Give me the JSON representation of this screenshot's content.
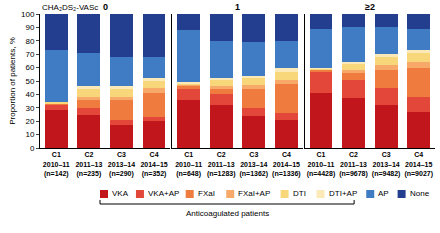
{
  "chart_data": {
    "type": "bar",
    "stacked": true,
    "title": "CHA₂DS₂-VASc",
    "y_label": "Proportion of patients, %",
    "ylim": [
      0,
      100
    ],
    "yticks": [
      0,
      10,
      20,
      30,
      40,
      50,
      60,
      70,
      80,
      90,
      100
    ],
    "legend": "bottom",
    "annotation": "Anticoagulated patients",
    "annotation_series": [
      "VKA",
      "VKA+AP",
      "FXaI",
      "FXaI+AP",
      "DTI",
      "DTI+AP"
    ],
    "series": [
      {
        "name": "VKA",
        "color": "#c0161c"
      },
      {
        "name": "VKA+AP",
        "color": "#e2473a"
      },
      {
        "name": "FXaI",
        "color": "#f07b3f"
      },
      {
        "name": "FXaI+AP",
        "color": "#f7a96a"
      },
      {
        "name": "DTI",
        "color": "#f7d77a"
      },
      {
        "name": "DTI+AP",
        "color": "#fbeab8"
      },
      {
        "name": "AP",
        "color": "#3f7cc4"
      },
      {
        "name": "None",
        "color": "#243e8f"
      }
    ],
    "panels": [
      {
        "title": "0",
        "categories": [
          "C1\n2010–11\n(n=142)",
          "C2\n2011–13\n(n=235)",
          "C3\n2013–14\n(n=290)",
          "C4\n2014–15\n(n=352)"
        ],
        "values": [
          [
            28,
            25,
            17,
            20
          ],
          [
            4,
            5,
            4,
            3
          ],
          [
            1,
            6,
            15,
            18
          ],
          [
            0,
            2,
            2,
            4
          ],
          [
            1,
            6,
            6,
            5
          ],
          [
            0,
            2,
            2,
            2
          ],
          [
            39,
            25,
            22,
            16
          ],
          [
            27,
            29,
            32,
            32
          ]
        ]
      },
      {
        "title": "1",
        "categories": [
          "C1\n2010–11\n(n=648)",
          "C2\n2011–13\n(n=1283)",
          "C3\n2013–14\n(n=1362)",
          "C4\n2014–15\n(n=1336)"
        ],
        "values": [
          [
            36,
            32,
            24,
            21
          ],
          [
            8,
            8,
            6,
            5
          ],
          [
            2,
            4,
            14,
            22
          ],
          [
            1,
            2,
            3,
            3
          ],
          [
            1,
            5,
            5,
            6
          ],
          [
            1,
            1,
            2,
            3
          ],
          [
            39,
            28,
            25,
            20
          ],
          [
            12,
            20,
            21,
            20
          ]
        ]
      },
      {
        "title": "≥2",
        "categories": [
          "C1\n2010–11\n(n=4428)",
          "C2\n2011–13\n(n=9678)",
          "C3\n2013–14\n(n=9482)",
          "C4\n2014–15\n(n=9027)"
        ],
        "values": [
          [
            41,
            37,
            32,
            27
          ],
          [
            16,
            14,
            13,
            11
          ],
          [
            1,
            5,
            13,
            22
          ],
          [
            0,
            2,
            4,
            4
          ],
          [
            1,
            5,
            6,
            7
          ],
          [
            1,
            1,
            2,
            2
          ],
          [
            29,
            26,
            20,
            16
          ],
          [
            11,
            10,
            10,
            11
          ]
        ]
      }
    ]
  }
}
